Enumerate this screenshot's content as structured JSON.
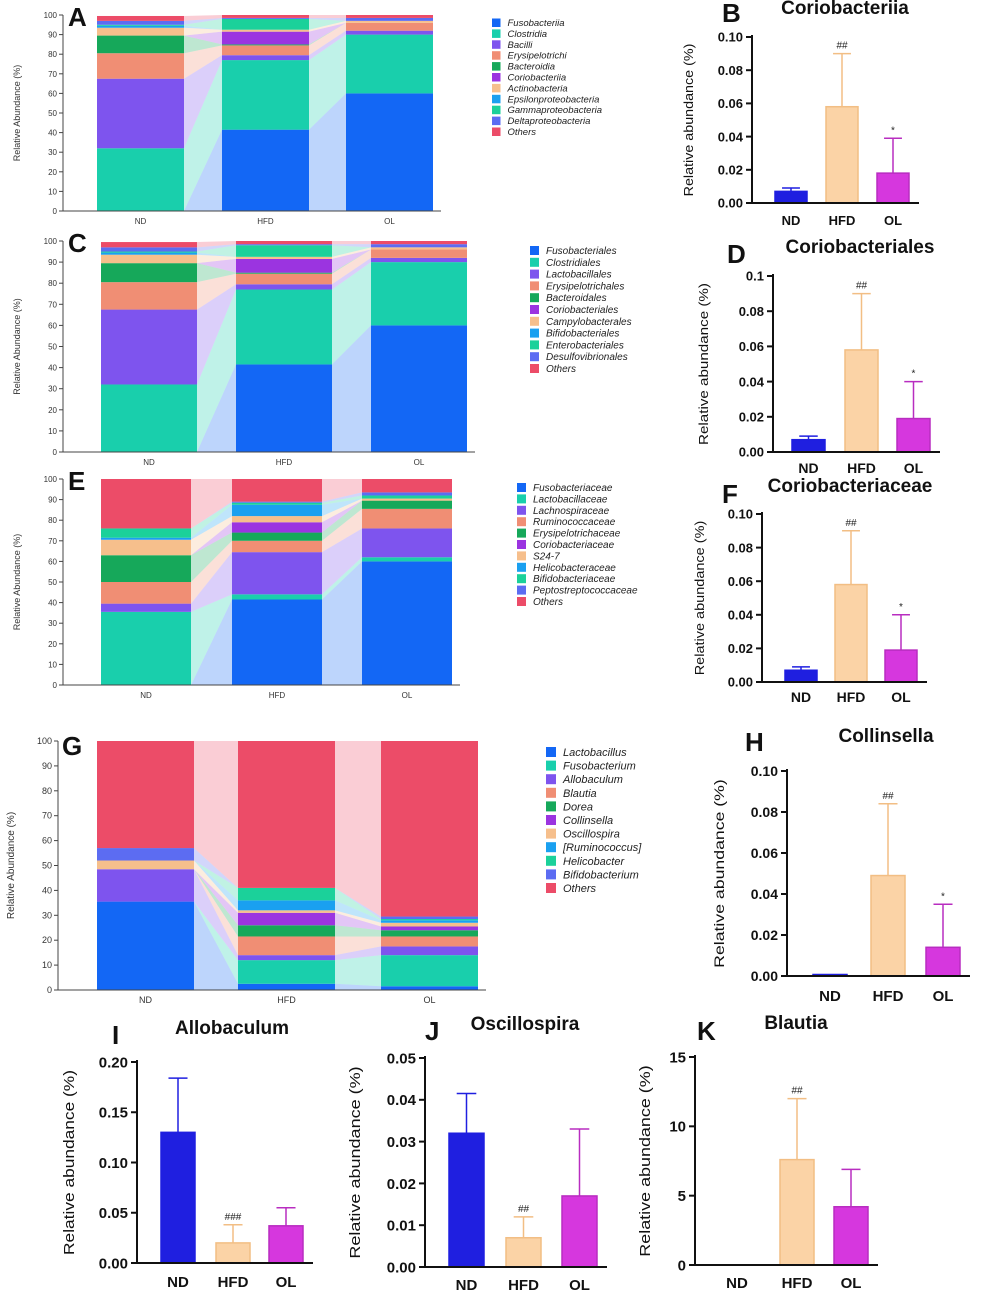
{
  "colors": {
    "nd": "#1f1fe0",
    "hfd": "#fbd3a6",
    "hfd_edge": "#f2be84",
    "ol": "#d637de",
    "ol_edge": "#b82dc0"
  },
  "chart_data": [
    {
      "id": "A",
      "type": "stacked_bar",
      "panel_letter": "A",
      "ylabel": "Relative Abundance (%)",
      "ylim": [
        0,
        100
      ],
      "yticks": [
        0,
        10,
        20,
        30,
        40,
        50,
        60,
        70,
        80,
        90,
        100
      ],
      "categories": [
        "ND",
        "HFD",
        "OL"
      ],
      "series": [
        {
          "name": "Fusobacteriia",
          "color": "#1367f5",
          "values": [
            0,
            41.5,
            60
          ]
        },
        {
          "name": "Clostridia",
          "color": "#19cfac",
          "values": [
            32,
            35.5,
            30
          ]
        },
        {
          "name": "Bacilli",
          "color": "#7e54ee",
          "values": [
            35.5,
            2.5,
            2
          ]
        },
        {
          "name": "Erysipelotrichi",
          "color": "#f08e74",
          "values": [
            13,
            5,
            4
          ]
        },
        {
          "name": "Bacteroidia",
          "color": "#16a85a",
          "values": [
            9,
            0.5,
            0
          ]
        },
        {
          "name": "Coriobacteriia",
          "color": "#9b34e0",
          "values": [
            0,
            6.5,
            0
          ]
        },
        {
          "name": "Actinobacteria",
          "color": "#f6bf8c",
          "values": [
            4,
            1,
            1
          ]
        },
        {
          "name": "Epsilonproteobacteria",
          "color": "#1aa0f0",
          "values": [
            1,
            0,
            0
          ]
        },
        {
          "name": "Gammaproteobacteria",
          "color": "#1bd19a",
          "values": [
            0.5,
            5.5,
            0
          ]
        },
        {
          "name": "Deltaproteobacteria",
          "color": "#5c6cf2",
          "values": [
            2,
            0.5,
            1.5
          ]
        },
        {
          "name": "Others",
          "color": "#ec4c68",
          "values": [
            2.5,
            1.5,
            1.5
          ]
        }
      ]
    },
    {
      "id": "B",
      "type": "bar",
      "panel_letter": "B",
      "title": "Coriobacteriia",
      "ylabel": "Relative abundance (%)",
      "ylim": [
        0,
        0.1
      ],
      "yticks": [
        "0.00",
        "0.02",
        "0.04",
        "0.06",
        "0.08",
        "0.10"
      ],
      "ytick_values": [
        0,
        0.02,
        0.04,
        0.06,
        0.08,
        0.1
      ],
      "categories": [
        "ND",
        "HFD",
        "OL"
      ],
      "values": [
        0.007,
        0.058,
        0.018
      ],
      "errors": [
        0.002,
        0.032,
        0.021
      ],
      "annotations": [
        "",
        "##",
        "*"
      ]
    },
    {
      "id": "C",
      "type": "stacked_bar",
      "panel_letter": "C",
      "ylabel": "Relative Abundance (%)",
      "ylim": [
        0,
        100
      ],
      "yticks": [
        0,
        10,
        20,
        30,
        40,
        50,
        60,
        70,
        80,
        90,
        100
      ],
      "categories": [
        "ND",
        "HFD",
        "OL"
      ],
      "series": [
        {
          "name": "Fusobacteriales",
          "color": "#1367f5",
          "values": [
            0,
            41.5,
            60
          ]
        },
        {
          "name": "Clostridiales",
          "color": "#19cfac",
          "values": [
            32,
            35.5,
            30
          ]
        },
        {
          "name": "Lactobacillales",
          "color": "#7e54ee",
          "values": [
            35.5,
            2.5,
            2
          ]
        },
        {
          "name": "Erysipelotrichales",
          "color": "#f08e74",
          "values": [
            13,
            5,
            4
          ]
        },
        {
          "name": "Bacteroidales",
          "color": "#16a85a",
          "values": [
            9,
            0.5,
            0
          ]
        },
        {
          "name": "Coriobacteriales",
          "color": "#9b34e0",
          "values": [
            0,
            6.5,
            0
          ]
        },
        {
          "name": "Campylobacterales",
          "color": "#f6bf8c",
          "values": [
            4,
            1,
            1
          ]
        },
        {
          "name": "Bifidobacteriales",
          "color": "#1aa0f0",
          "values": [
            1,
            0,
            0
          ]
        },
        {
          "name": "Enterobacteriales",
          "color": "#1bd19a",
          "values": [
            0.5,
            5.5,
            0
          ]
        },
        {
          "name": "Desulfovibrionales",
          "color": "#5c6cf2",
          "values": [
            2,
            0.5,
            1.5
          ]
        },
        {
          "name": "Others",
          "color": "#ec4c68",
          "values": [
            2.5,
            1.5,
            1.5
          ]
        }
      ]
    },
    {
      "id": "D",
      "type": "bar",
      "panel_letter": "D",
      "title": "Coriobacteriales",
      "ylabel": "Relative abundance (%)",
      "ylim": [
        0,
        0.1
      ],
      "yticks": [
        "0.00",
        "0.02",
        "0.04",
        "0.06",
        "0.08",
        "0.1"
      ],
      "ytick_values": [
        0,
        0.02,
        0.04,
        0.06,
        0.08,
        0.1
      ],
      "categories": [
        "ND",
        "HFD",
        "OL"
      ],
      "values": [
        0.007,
        0.058,
        0.019
      ],
      "errors": [
        0.002,
        0.032,
        0.021
      ],
      "annotations": [
        "",
        "##",
        "*"
      ]
    },
    {
      "id": "E",
      "type": "stacked_bar",
      "panel_letter": "E",
      "ylabel": "Relative Abundance (%)",
      "ylim": [
        0,
        100
      ],
      "yticks": [
        0,
        10,
        20,
        30,
        40,
        50,
        60,
        70,
        80,
        90,
        100
      ],
      "categories": [
        "ND",
        "HFD",
        "OL"
      ],
      "series": [
        {
          "name": "Fusobacteriaceae",
          "color": "#1367f5",
          "values": [
            0,
            41.5,
            60
          ]
        },
        {
          "name": "Lactobacillaceae",
          "color": "#19cfac",
          "values": [
            35.5,
            2.5,
            2
          ]
        },
        {
          "name": "Lachnospiraceae",
          "color": "#7e54ee",
          "values": [
            4,
            20.5,
            14
          ]
        },
        {
          "name": "Ruminococcaceae",
          "color": "#f08e74",
          "values": [
            10.5,
            5.5,
            9.5
          ]
        },
        {
          "name": "Erysipelotrichaceae",
          "color": "#16a85a",
          "values": [
            13,
            4,
            4
          ]
        },
        {
          "name": "Coriobacteriaceae",
          "color": "#9b34e0",
          "values": [
            0,
            5,
            0
          ]
        },
        {
          "name": "S24-7",
          "color": "#f6bf8c",
          "values": [
            7.5,
            3,
            1
          ]
        },
        {
          "name": "Helicobacteraceae",
          "color": "#1aa0f0",
          "values": [
            1,
            5.5,
            0
          ]
        },
        {
          "name": "Bifidobacteriaceae",
          "color": "#1bd19a",
          "values": [
            4.5,
            1,
            1.5
          ]
        },
        {
          "name": "Peptostreptococcaceae",
          "color": "#5c6cf2",
          "values": [
            0,
            0.5,
            1.5
          ]
        },
        {
          "name": "Others",
          "color": "#ec4c68",
          "values": [
            24,
            11,
            6.5
          ]
        }
      ]
    },
    {
      "id": "F",
      "type": "bar",
      "panel_letter": "F",
      "title": "Coriobacteriaceae",
      "ylabel": "Relative abundance (%)",
      "ylim": [
        0,
        0.1
      ],
      "yticks": [
        "0.00",
        "0.02",
        "0.04",
        "0.06",
        "0.08",
        "0.10"
      ],
      "ytick_values": [
        0,
        0.02,
        0.04,
        0.06,
        0.08,
        0.1
      ],
      "categories": [
        "ND",
        "HFD",
        "OL"
      ],
      "values": [
        0.007,
        0.058,
        0.019
      ],
      "errors": [
        0.002,
        0.032,
        0.021
      ],
      "annotations": [
        "",
        "##",
        "*"
      ]
    },
    {
      "id": "G",
      "type": "stacked_bar",
      "panel_letter": "G",
      "ylabel": "Relative Abundance (%)",
      "ylim": [
        0,
        100
      ],
      "yticks": [
        0,
        10,
        20,
        30,
        40,
        50,
        60,
        70,
        80,
        90,
        100
      ],
      "categories": [
        "ND",
        "HFD",
        "OL"
      ],
      "series": [
        {
          "name": "Lactobacillus",
          "color": "#1367f5",
          "values": [
            35.5,
            2.5,
            1.5
          ]
        },
        {
          "name": "Fusobacterium",
          "color": "#19cfac",
          "values": [
            0,
            9.5,
            12.5
          ]
        },
        {
          "name": "Allobaculum",
          "color": "#7e54ee",
          "values": [
            13,
            2,
            3.5
          ]
        },
        {
          "name": "Blautia",
          "color": "#f08e74",
          "values": [
            0,
            7.5,
            4
          ]
        },
        {
          "name": "Dorea",
          "color": "#16a85a",
          "values": [
            0,
            4.5,
            2.5
          ]
        },
        {
          "name": "Collinsella",
          "color": "#9b34e0",
          "values": [
            0,
            5,
            1.5
          ]
        },
        {
          "name": "Oscillospira",
          "color": "#f6bf8c",
          "values": [
            3.5,
            1,
            1.5
          ]
        },
        {
          "name": "[Ruminococcus]",
          "color": "#1aa0f0",
          "values": [
            0,
            4,
            1
          ]
        },
        {
          "name": "Helicobacter",
          "color": "#1bd19a",
          "values": [
            0,
            5,
            0.5
          ]
        },
        {
          "name": "Bifidobacterium",
          "color": "#5c6cf2",
          "values": [
            5,
            0,
            1
          ]
        },
        {
          "name": "Others",
          "color": "#ec4c68",
          "values": [
            43,
            59,
            70.5
          ]
        }
      ]
    },
    {
      "id": "H",
      "type": "bar",
      "panel_letter": "H",
      "title": "Collinsella",
      "ylabel": "Relative abundance (%)",
      "ylim": [
        0,
        0.1
      ],
      "yticks": [
        "0.00",
        "0.02",
        "0.04",
        "0.06",
        "0.08",
        "0.10"
      ],
      "ytick_values": [
        0,
        0.02,
        0.04,
        0.06,
        0.08,
        0.1
      ],
      "categories": [
        "ND",
        "HFD",
        "OL"
      ],
      "values": [
        0.0002,
        0.049,
        0.014
      ],
      "errors": [
        0,
        0.035,
        0.021
      ],
      "annotations": [
        "",
        "##",
        "*"
      ]
    },
    {
      "id": "I",
      "type": "bar",
      "panel_letter": "I",
      "title": "Allobaculum",
      "ylabel": "Relative abundance (%)",
      "ylim": [
        0,
        0.2
      ],
      "yticks": [
        "0.00",
        "0.05",
        "0.10",
        "0.15",
        "0.20"
      ],
      "ytick_values": [
        0,
        0.05,
        0.1,
        0.15,
        0.2
      ],
      "categories": [
        "ND",
        "HFD",
        "OL"
      ],
      "values": [
        0.13,
        0.02,
        0.037
      ],
      "errors": [
        0.054,
        0.018,
        0.018
      ],
      "annotations": [
        "",
        "###",
        ""
      ]
    },
    {
      "id": "J",
      "type": "bar",
      "panel_letter": "J",
      "title": "Oscillospira",
      "ylabel": "Relative abundance (%)",
      "ylim": [
        0,
        0.05
      ],
      "yticks": [
        "0.00",
        "0.01",
        "0.02",
        "0.03",
        "0.04",
        "0.05"
      ],
      "ytick_values": [
        0,
        0.01,
        0.02,
        0.03,
        0.04,
        0.05
      ],
      "categories": [
        "ND",
        "HFD",
        "OL"
      ],
      "values": [
        0.032,
        0.007,
        0.017
      ],
      "errors": [
        0.0095,
        0.005,
        0.016
      ],
      "annotations": [
        "",
        "##",
        ""
      ]
    },
    {
      "id": "K",
      "type": "bar",
      "panel_letter": "K",
      "title": "Blautia",
      "ylabel": "Relative abundance (%)",
      "ylim": [
        0,
        15
      ],
      "yticks": [
        "0",
        "5",
        "10",
        "15"
      ],
      "ytick_values": [
        0,
        5,
        10,
        15
      ],
      "categories": [
        "ND",
        "HFD",
        "OL"
      ],
      "values": [
        0,
        7.6,
        4.2
      ],
      "errors": [
        0,
        4.4,
        2.7
      ],
      "annotations": [
        "",
        "##",
        ""
      ]
    }
  ]
}
